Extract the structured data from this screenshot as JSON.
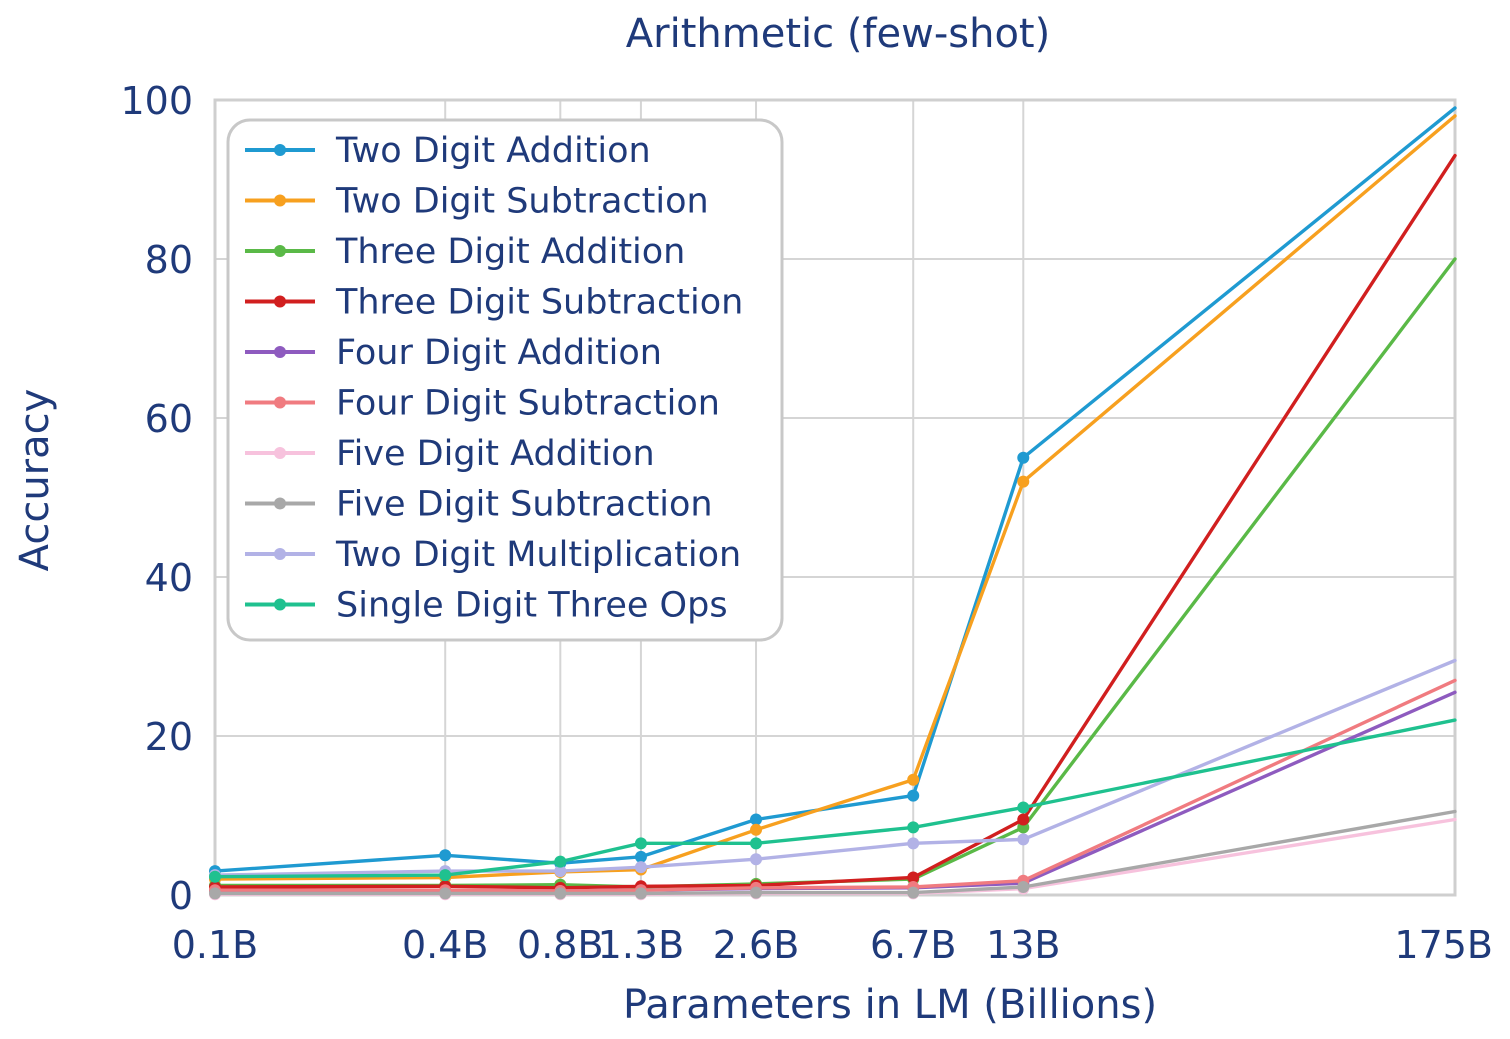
{
  "chart_data": {
    "type": "line",
    "title": "Arithmetic (few-shot)",
    "xlabel": "Parameters in LM (Billions)",
    "ylabel": "Accuracy",
    "x_categories": [
      "0.1B",
      "0.4B",
      "0.8B",
      "1.3B",
      "2.6B",
      "6.7B",
      "13B",
      "175B"
    ],
    "x_values": [
      0.1,
      0.4,
      0.8,
      1.3,
      2.6,
      6.7,
      13,
      175
    ],
    "x_scale": "log",
    "ylim": [
      0,
      100
    ],
    "yticks": [
      0,
      20,
      40,
      60,
      80,
      100
    ],
    "grid": true,
    "legend_position": "top-left",
    "series": [
      {
        "name": "Two Digit Addition",
        "color": "#1f9ad1",
        "values": [
          3.0,
          5.0,
          4.0,
          4.8,
          9.5,
          12.5,
          55.0,
          99.0
        ]
      },
      {
        "name": "Two Digit Subtraction",
        "color": "#f7a01f",
        "values": [
          2.0,
          2.2,
          2.9,
          3.2,
          8.2,
          14.5,
          52.0,
          98.0
        ]
      },
      {
        "name": "Three Digit Addition",
        "color": "#5ab947",
        "values": [
          1.2,
          1.2,
          1.3,
          1.0,
          1.4,
          2.0,
          8.5,
          80.0
        ]
      },
      {
        "name": "Three Digit Subtraction",
        "color": "#d11f1f",
        "values": [
          1.0,
          1.1,
          0.9,
          1.1,
          1.2,
          2.2,
          9.5,
          93.0
        ]
      },
      {
        "name": "Four Digit Addition",
        "color": "#8e5bbf",
        "values": [
          0.5,
          0.5,
          0.5,
          0.6,
          0.8,
          0.9,
          1.5,
          25.5
        ]
      },
      {
        "name": "Four Digit Subtraction",
        "color": "#f07b80",
        "values": [
          0.6,
          0.6,
          0.5,
          0.6,
          0.9,
          1.0,
          1.8,
          27.0
        ]
      },
      {
        "name": "Five Digit Addition",
        "color": "#f7c2dd",
        "values": [
          0.1,
          0.1,
          0.1,
          0.1,
          0.2,
          0.2,
          0.8,
          9.5
        ]
      },
      {
        "name": "Five Digit Subtraction",
        "color": "#a8a8a8",
        "values": [
          0.2,
          0.2,
          0.2,
          0.2,
          0.3,
          0.3,
          1.0,
          10.5
        ]
      },
      {
        "name": "Two Digit Multiplication",
        "color": "#b2b2e6",
        "values": [
          2.5,
          3.0,
          3.0,
          3.5,
          4.5,
          6.5,
          7.0,
          29.5
        ]
      },
      {
        "name": "Single Digit Three Ops",
        "color": "#1fc18f",
        "values": [
          2.3,
          2.5,
          4.2,
          6.5,
          6.5,
          8.5,
          11.0,
          22.0
        ]
      }
    ]
  }
}
